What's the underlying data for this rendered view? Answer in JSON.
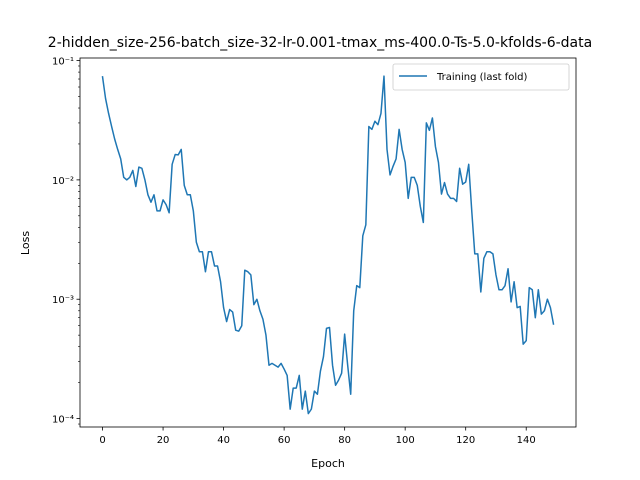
{
  "chart_data": {
    "type": "line",
    "title": "2-hidden_size-256-batch_size-32-lr-0.001-tmax_ms-400.0-Ts-5.0-kfolds-6-data",
    "xlabel": "Epoch",
    "ylabel": "Loss",
    "xscale": "linear",
    "yscale": "log",
    "xlim": [
      -7.45,
      156.45
    ],
    "ylim": [
      8.5e-05,
      0.105
    ],
    "grid": false,
    "legend_loc": "upper right",
    "x_ticks": [
      0,
      20,
      40,
      60,
      80,
      100,
      120,
      140
    ],
    "x_tick_labels": [
      "0",
      "20",
      "40",
      "60",
      "80",
      "100",
      "120",
      "140"
    ],
    "y_ticks": [
      0.0001,
      0.001,
      0.01,
      0.1
    ],
    "y_tick_labels": [
      "10⁻⁴",
      "10⁻³",
      "10⁻²",
      "10⁻¹"
    ],
    "series": [
      {
        "name": "Training (last fold)",
        "color": "#1f77b4",
        "x_start": 0,
        "x_step": 1,
        "values": [
          0.073,
          0.048,
          0.036,
          0.028,
          0.022,
          0.018,
          0.015,
          0.0105,
          0.01,
          0.0105,
          0.012,
          0.0088,
          0.0128,
          0.0125,
          0.01,
          0.0075,
          0.0065,
          0.0075,
          0.0055,
          0.0055,
          0.0068,
          0.0062,
          0.0053,
          0.0135,
          0.0163,
          0.0162,
          0.018,
          0.009,
          0.0075,
          0.0075,
          0.0055,
          0.003,
          0.0025,
          0.0025,
          0.0017,
          0.0025,
          0.0025,
          0.0019,
          0.0019,
          0.0014,
          0.00085,
          0.00065,
          0.00082,
          0.00078,
          0.00055,
          0.00054,
          0.0006,
          0.00175,
          0.0017,
          0.0016,
          0.0009,
          0.001,
          0.0008,
          0.00068,
          0.0005,
          0.00028,
          0.00029,
          0.00028,
          0.00027,
          0.00029,
          0.00026,
          0.00023,
          0.00012,
          0.00018,
          0.00018,
          0.00023,
          0.00012,
          0.00017,
          0.00011,
          0.00012,
          0.00017,
          0.00016,
          0.00025,
          0.00033,
          0.00057,
          0.00058,
          0.00028,
          0.00019,
          0.00021,
          0.00024,
          0.00051,
          0.00028,
          0.00016,
          0.0008,
          0.0013,
          0.00125,
          0.0034,
          0.0042,
          0.028,
          0.0265,
          0.031,
          0.029,
          0.036,
          0.074,
          0.018,
          0.011,
          0.013,
          0.015,
          0.0265,
          0.018,
          0.014,
          0.007,
          0.0105,
          0.0105,
          0.009,
          0.006,
          0.0044,
          0.03,
          0.026,
          0.033,
          0.019,
          0.014,
          0.0076,
          0.0095,
          0.0076,
          0.007,
          0.007,
          0.0066,
          0.0125,
          0.0092,
          0.0096,
          0.0135,
          0.0055,
          0.0024,
          0.0024,
          0.00115,
          0.0022,
          0.0025,
          0.0025,
          0.0024,
          0.0016,
          0.0012,
          0.0012,
          0.0013,
          0.0018,
          0.00095,
          0.0014,
          0.00085,
          0.00087,
          0.00042,
          0.00045,
          0.00125,
          0.0012,
          0.0007,
          0.0012,
          0.00075,
          0.0008,
          0.001,
          0.00085,
          0.00062
        ]
      }
    ]
  }
}
